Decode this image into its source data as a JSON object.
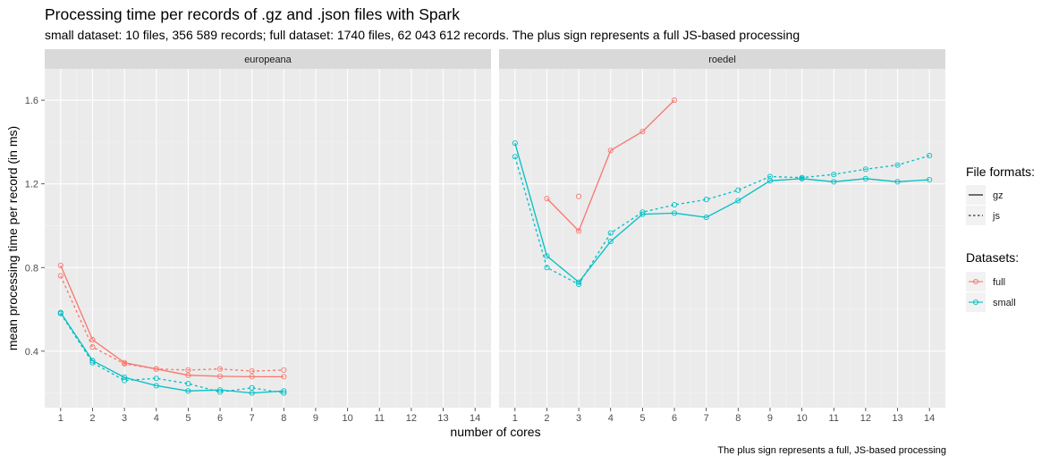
{
  "chart_data": {
    "type": "line",
    "title": "Processing time per records of .gz and .json files with Spark",
    "subtitle": "small dataset: 10 files, 356 589 records; full dataset: 1740 files, 62 043 612 records. The plus sign represents a full JS-based processing",
    "caption": "The plus sign represents a full, JS-based processing",
    "xlabel": "number of cores",
    "ylabel": "mean processing time per record (in ms)",
    "xlim": [
      0.5,
      14.5
    ],
    "ylim": [
      0.13,
      1.75
    ],
    "x_ticks": [
      1,
      2,
      3,
      4,
      5,
      6,
      7,
      8,
      9,
      10,
      11,
      12,
      13,
      14
    ],
    "x_tick_labels": [
      "1",
      "2",
      "3",
      "4",
      "5",
      "6",
      "7",
      "8",
      "9",
      "10",
      "11",
      "12",
      "13",
      "14"
    ],
    "y_ticks": [
      0.4,
      0.8,
      1.2,
      1.6
    ],
    "y_tick_labels": [
      "0.4",
      "0.8",
      "1.2",
      "1.6"
    ],
    "grid": true,
    "legend_position": "right",
    "legends": {
      "file_formats": {
        "title": "File formats:",
        "items": [
          {
            "label": "gz",
            "linetype": "solid"
          },
          {
            "label": "js",
            "linetype": "dashed"
          }
        ]
      },
      "datasets": {
        "title": "Datasets:",
        "items": [
          {
            "label": "full",
            "color": "#F8766D"
          },
          {
            "label": "small",
            "color": "#00BFC4"
          }
        ]
      }
    },
    "panels": [
      {
        "name": "europeana",
        "series": [
          {
            "dataset": "full",
            "format": "gz",
            "color": "#F8766D",
            "linetype": "solid",
            "x": [
              1,
              2,
              3,
              4,
              5,
              6,
              7,
              8
            ],
            "y": [
              0.81,
              0.455,
              0.345,
              0.315,
              0.285,
              0.28,
              0.278,
              0.278
            ]
          },
          {
            "dataset": "full",
            "format": "js",
            "color": "#F8766D",
            "linetype": "dashed",
            "x": [
              1,
              2,
              3,
              4,
              5,
              6,
              7,
              8
            ],
            "y": [
              0.76,
              0.42,
              0.34,
              0.315,
              0.31,
              0.315,
              0.305,
              0.31
            ]
          },
          {
            "dataset": "small",
            "format": "gz",
            "color": "#00BFC4",
            "linetype": "solid",
            "x": [
              1,
              2,
              3,
              4,
              5,
              6,
              7,
              8
            ],
            "y": [
              0.585,
              0.355,
              0.275,
              0.235,
              0.21,
              0.215,
              0.2,
              0.21
            ]
          },
          {
            "dataset": "small",
            "format": "js",
            "color": "#00BFC4",
            "linetype": "dashed",
            "x": [
              1,
              2,
              3,
              4,
              5,
              6,
              7,
              8
            ],
            "y": [
              0.58,
              0.345,
              0.26,
              0.27,
              0.245,
              0.205,
              0.225,
              0.2
            ]
          }
        ]
      },
      {
        "name": "roedel",
        "series": [
          {
            "dataset": "full",
            "format": "gz",
            "color": "#F8766D",
            "linetype": "solid",
            "x": [
              2,
              3,
              4,
              5,
              6
            ],
            "y": [
              1.13,
              0.975,
              1.36,
              1.45,
              1.6
            ]
          },
          {
            "dataset": "full",
            "format": "js",
            "color": "#F8766D",
            "linetype": "dashed",
            "x": [
              3
            ],
            "y": [
              1.14
            ]
          },
          {
            "dataset": "small",
            "format": "gz",
            "color": "#00BFC4",
            "linetype": "solid",
            "x": [
              1,
              2,
              3,
              4,
              5,
              6,
              7,
              8,
              9,
              10,
              11,
              12,
              13,
              14
            ],
            "y": [
              1.395,
              0.855,
              0.73,
              0.925,
              1.055,
              1.06,
              1.04,
              1.12,
              1.215,
              1.225,
              1.21,
              1.225,
              1.21,
              1.22
            ]
          },
          {
            "dataset": "small",
            "format": "js",
            "color": "#00BFC4",
            "linetype": "dashed",
            "x": [
              1,
              2,
              3,
              4,
              5,
              6,
              7,
              8,
              9,
              10,
              11,
              12,
              13,
              14
            ],
            "y": [
              1.33,
              0.8,
              0.72,
              0.965,
              1.065,
              1.1,
              1.125,
              1.17,
              1.235,
              1.23,
              1.245,
              1.27,
              1.29,
              1.335
            ]
          }
        ]
      }
    ]
  }
}
